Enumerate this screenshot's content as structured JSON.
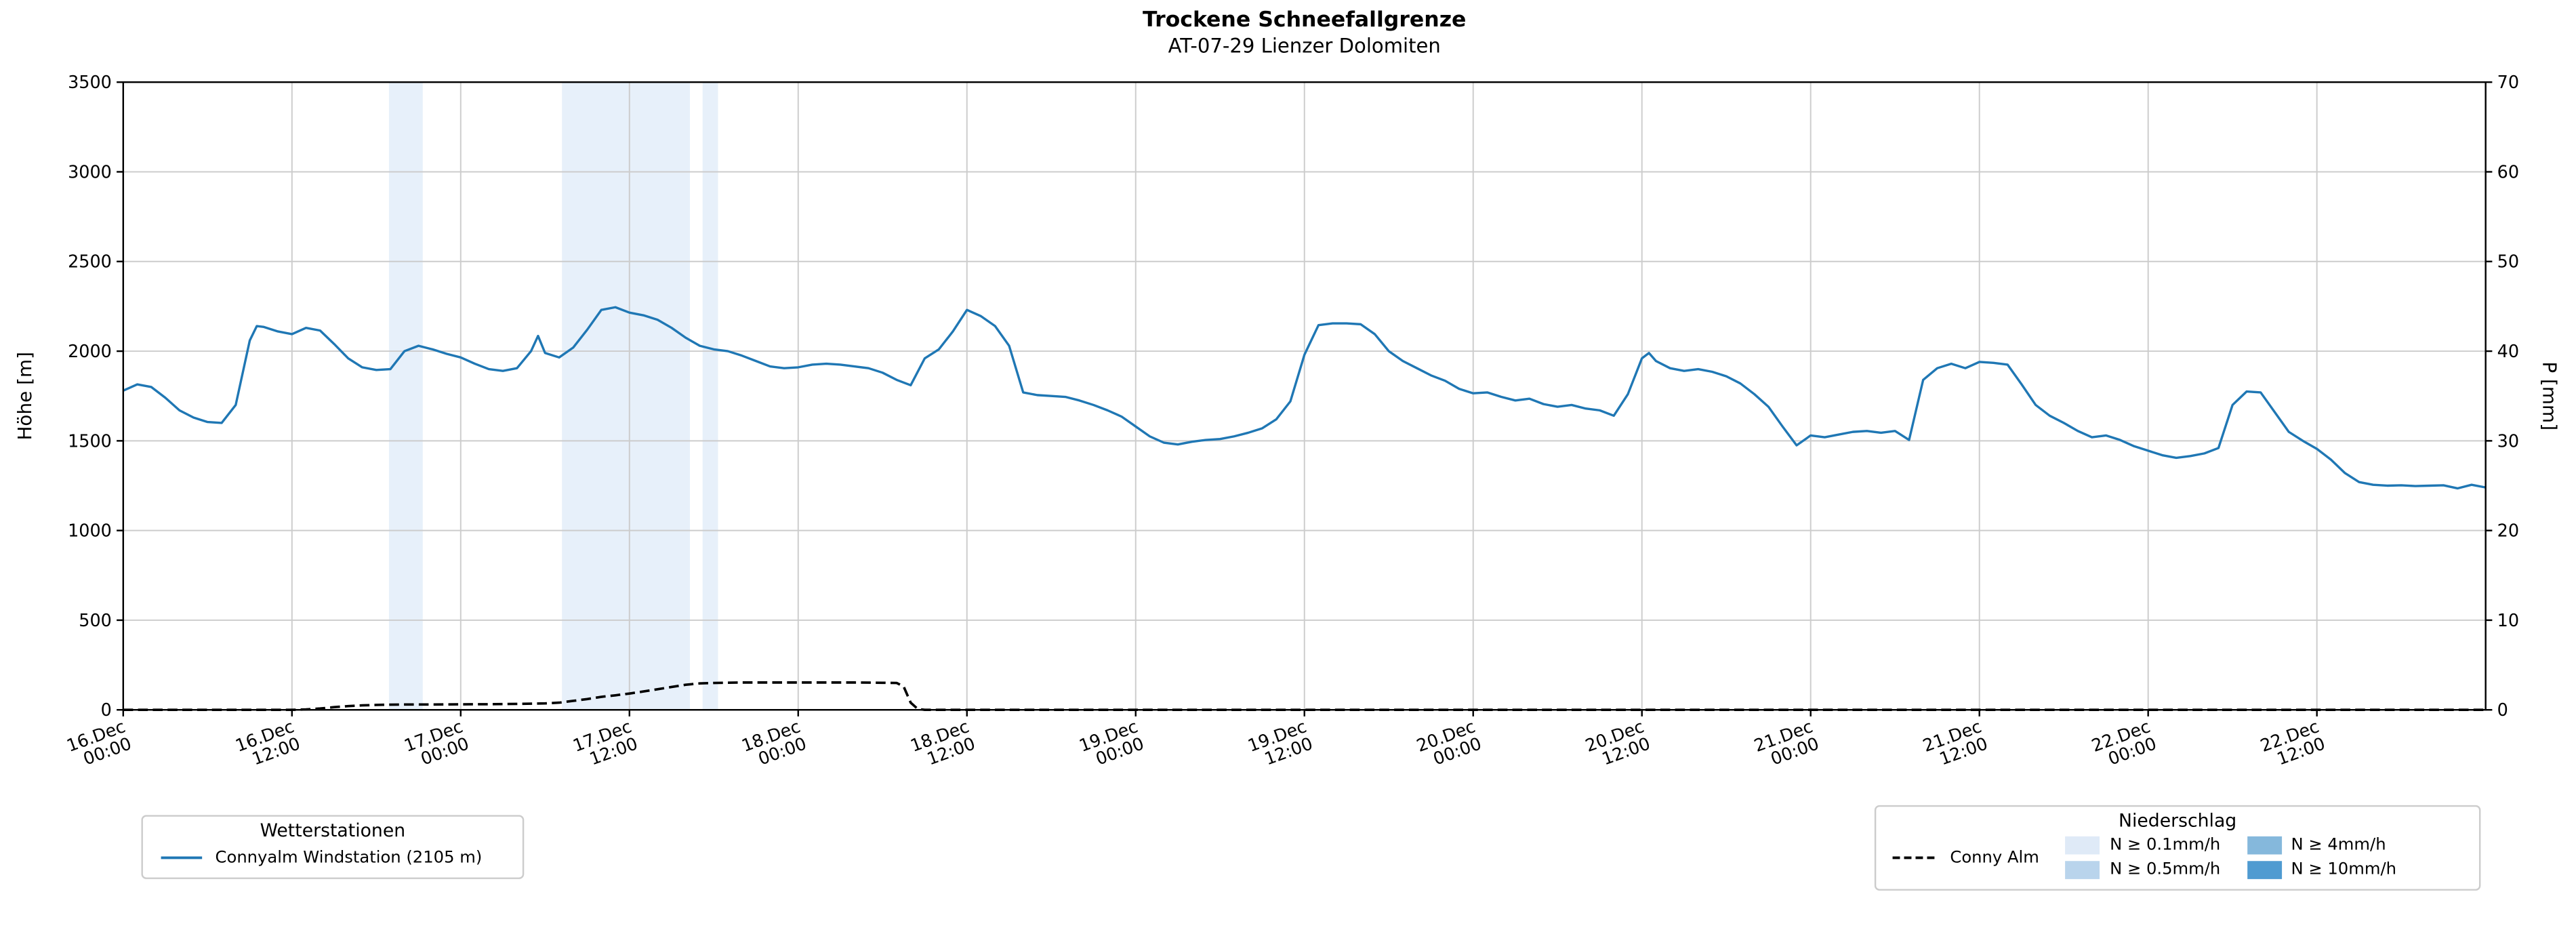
{
  "chart": {
    "title": "Trockene Schneefallgrenze",
    "subtitle": "AT-07-29 Lienzer Dolomiten",
    "ylabel_left": "Höhe [m]",
    "ylabel_right": "P [mm]"
  },
  "legend_left": {
    "title": "Wetterstationen",
    "items": [
      {
        "label": "Connyalm Windstation (2105 m)",
        "color": "#1f77b4",
        "style": "solid"
      }
    ]
  },
  "legend_right": {
    "title": "Niederschlag",
    "line_item": {
      "label": "Conny Alm",
      "color": "#000000",
      "style": "dashed"
    },
    "patch_items": [
      {
        "label": "N ≥ 0.1mm/h",
        "color": "#dfeaf7"
      },
      {
        "label": "N ≥ 0.5mm/h",
        "color": "#b9d4ec"
      },
      {
        "label": "N ≥ 4mm/h",
        "color": "#85b8dc"
      },
      {
        "label": "N ≥ 10mm/h",
        "color": "#4f9bd1"
      }
    ]
  },
  "chart_data": {
    "type": "line",
    "title": "Trockene Schneefallgrenze",
    "subtitle": "AT-07-29 Lienzer Dolomiten",
    "xlabel": "",
    "ylabel_left": "Höhe [m]",
    "ylabel_right": "P [mm]",
    "x_unit": "hours since 16.Dec 00:00",
    "x_range": [
      0,
      168
    ],
    "ylim_left": [
      0,
      3500
    ],
    "ylim_right": [
      0,
      70
    ],
    "grid": true,
    "yticks_left": [
      0,
      500,
      1000,
      1500,
      2000,
      2500,
      3000,
      3500
    ],
    "yticks_right": [
      0,
      10,
      20,
      30,
      40,
      50,
      60,
      70
    ],
    "x_ticks": [
      {
        "h": 0,
        "line1": "16.Dec",
        "line2": "00:00"
      },
      {
        "h": 12,
        "line1": "16.Dec",
        "line2": "12:00"
      },
      {
        "h": 24,
        "line1": "17.Dec",
        "line2": "00:00"
      },
      {
        "h": 36,
        "line1": "17.Dec",
        "line2": "12:00"
      },
      {
        "h": 48,
        "line1": "18.Dec",
        "line2": "00:00"
      },
      {
        "h": 60,
        "line1": "18.Dec",
        "line2": "12:00"
      },
      {
        "h": 72,
        "line1": "19.Dec",
        "line2": "00:00"
      },
      {
        "h": 84,
        "line1": "19.Dec",
        "line2": "12:00"
      },
      {
        "h": 96,
        "line1": "20.Dec",
        "line2": "00:00"
      },
      {
        "h": 108,
        "line1": "20.Dec",
        "line2": "12:00"
      },
      {
        "h": 120,
        "line1": "21.Dec",
        "line2": "00:00"
      },
      {
        "h": 132,
        "line1": "21.Dec",
        "line2": "12:00"
      },
      {
        "h": 144,
        "line1": "22.Dec",
        "line2": "00:00"
      },
      {
        "h": 156,
        "line1": "22.Dec",
        "line2": "12:00"
      }
    ],
    "precip_bands": [
      {
        "from_h": 18.9,
        "to_h": 21.3,
        "level": "N ≥ 0.1mm/h",
        "color": "#e7f0fa"
      },
      {
        "from_h": 31.2,
        "to_h": 40.3,
        "level": "N ≥ 0.1mm/h",
        "color": "#e7f0fa"
      },
      {
        "from_h": 41.2,
        "to_h": 42.3,
        "level": "N ≥ 0.1mm/h",
        "color": "#e7f0fa"
      }
    ],
    "series": [
      {
        "id": "connyalm-windstation",
        "name": "Connyalm Windstation (2105 m)",
        "axis": "left",
        "color": "#1f77b4",
        "style": "solid",
        "width": 1.4,
        "points": [
          [
            0,
            1780
          ],
          [
            1,
            1815
          ],
          [
            2,
            1800
          ],
          [
            3,
            1740
          ],
          [
            4,
            1670
          ],
          [
            5,
            1630
          ],
          [
            6,
            1605
          ],
          [
            7,
            1600
          ],
          [
            8,
            1700
          ],
          [
            9,
            2060
          ],
          [
            9.5,
            2140
          ],
          [
            10,
            2135
          ],
          [
            11,
            2110
          ],
          [
            12,
            2095
          ],
          [
            13,
            2130
          ],
          [
            14,
            2115
          ],
          [
            15,
            2040
          ],
          [
            16,
            1960
          ],
          [
            17,
            1910
          ],
          [
            18,
            1895
          ],
          [
            19,
            1900
          ],
          [
            20,
            2000
          ],
          [
            21,
            2030
          ],
          [
            22,
            2010
          ],
          [
            23,
            1985
          ],
          [
            24,
            1965
          ],
          [
            25,
            1930
          ],
          [
            26,
            1900
          ],
          [
            27,
            1890
          ],
          [
            28,
            1905
          ],
          [
            29,
            2000
          ],
          [
            29.5,
            2085
          ],
          [
            30,
            1990
          ],
          [
            31,
            1965
          ],
          [
            32,
            2020
          ],
          [
            33,
            2120
          ],
          [
            34,
            2230
          ],
          [
            35,
            2245
          ],
          [
            36,
            2215
          ],
          [
            37,
            2200
          ],
          [
            38,
            2175
          ],
          [
            39,
            2130
          ],
          [
            40,
            2075
          ],
          [
            41,
            2030
          ],
          [
            42,
            2010
          ],
          [
            43,
            2000
          ],
          [
            44,
            1975
          ],
          [
            45,
            1945
          ],
          [
            46,
            1915
          ],
          [
            47,
            1905
          ],
          [
            48,
            1910
          ],
          [
            49,
            1925
          ],
          [
            50,
            1930
          ],
          [
            51,
            1925
          ],
          [
            52,
            1915
          ],
          [
            53,
            1905
          ],
          [
            54,
            1880
          ],
          [
            55,
            1840
          ],
          [
            56,
            1810
          ],
          [
            57,
            1960
          ],
          [
            58,
            2010
          ],
          [
            59,
            2110
          ],
          [
            60,
            2230
          ],
          [
            61,
            2195
          ],
          [
            62,
            2140
          ],
          [
            63,
            2030
          ],
          [
            64,
            1770
          ],
          [
            65,
            1755
          ],
          [
            66,
            1750
          ],
          [
            67,
            1745
          ],
          [
            68,
            1725
          ],
          [
            69,
            1700
          ],
          [
            70,
            1670
          ],
          [
            71,
            1635
          ],
          [
            72,
            1580
          ],
          [
            73,
            1525
          ],
          [
            74,
            1490
          ],
          [
            75,
            1480
          ],
          [
            76,
            1495
          ],
          [
            77,
            1505
          ],
          [
            78,
            1510
          ],
          [
            79,
            1525
          ],
          [
            80,
            1545
          ],
          [
            81,
            1570
          ],
          [
            82,
            1620
          ],
          [
            83,
            1720
          ],
          [
            84,
            1980
          ],
          [
            85,
            2145
          ],
          [
            86,
            2155
          ],
          [
            87,
            2155
          ],
          [
            88,
            2150
          ],
          [
            89,
            2095
          ],
          [
            90,
            2000
          ],
          [
            91,
            1945
          ],
          [
            92,
            1905
          ],
          [
            93,
            1865
          ],
          [
            94,
            1835
          ],
          [
            95,
            1790
          ],
          [
            96,
            1765
          ],
          [
            97,
            1770
          ],
          [
            98,
            1745
          ],
          [
            99,
            1725
          ],
          [
            100,
            1735
          ],
          [
            101,
            1705
          ],
          [
            102,
            1690
          ],
          [
            103,
            1700
          ],
          [
            104,
            1680
          ],
          [
            105,
            1670
          ],
          [
            106,
            1640
          ],
          [
            107,
            1760
          ],
          [
            108,
            1960
          ],
          [
            108.5,
            1990
          ],
          [
            109,
            1945
          ],
          [
            110,
            1905
          ],
          [
            111,
            1890
          ],
          [
            112,
            1900
          ],
          [
            113,
            1885
          ],
          [
            114,
            1860
          ],
          [
            115,
            1820
          ],
          [
            116,
            1760
          ],
          [
            117,
            1690
          ],
          [
            118,
            1580
          ],
          [
            119,
            1475
          ],
          [
            120,
            1530
          ],
          [
            121,
            1520
          ],
          [
            122,
            1535
          ],
          [
            123,
            1550
          ],
          [
            124,
            1555
          ],
          [
            125,
            1545
          ],
          [
            126,
            1555
          ],
          [
            127,
            1505
          ],
          [
            128,
            1840
          ],
          [
            129,
            1905
          ],
          [
            130,
            1930
          ],
          [
            131,
            1905
          ],
          [
            132,
            1940
          ],
          [
            133,
            1935
          ],
          [
            134,
            1925
          ],
          [
            135,
            1815
          ],
          [
            136,
            1700
          ],
          [
            137,
            1640
          ],
          [
            138,
            1600
          ],
          [
            139,
            1555
          ],
          [
            140,
            1520
          ],
          [
            141,
            1530
          ],
          [
            142,
            1505
          ],
          [
            143,
            1470
          ],
          [
            144,
            1445
          ],
          [
            145,
            1420
          ],
          [
            146,
            1405
          ],
          [
            147,
            1415
          ],
          [
            148,
            1430
          ],
          [
            149,
            1460
          ],
          [
            150,
            1700
          ],
          [
            151,
            1775
          ],
          [
            152,
            1770
          ],
          [
            153,
            1660
          ],
          [
            154,
            1550
          ],
          [
            155,
            1500
          ],
          [
            156,
            1455
          ],
          [
            157,
            1395
          ],
          [
            158,
            1320
          ],
          [
            159,
            1270
          ],
          [
            160,
            1255
          ],
          [
            161,
            1250
          ],
          [
            162,
            1252
          ],
          [
            163,
            1248
          ],
          [
            164,
            1250
          ],
          [
            165,
            1252
          ],
          [
            166,
            1235
          ],
          [
            167,
            1255
          ],
          [
            168,
            1240
          ]
        ]
      },
      {
        "id": "conny-alm-precip",
        "name": "Conny Alm",
        "axis": "right",
        "color": "#000000",
        "style": "dashed",
        "width": 1.5,
        "points": [
          [
            0,
            0
          ],
          [
            6,
            0
          ],
          [
            12,
            0
          ],
          [
            13,
            0.05
          ],
          [
            14,
            0.15
          ],
          [
            15,
            0.3
          ],
          [
            16,
            0.42
          ],
          [
            17,
            0.5
          ],
          [
            18,
            0.55
          ],
          [
            19,
            0.58
          ],
          [
            20,
            0.6
          ],
          [
            22,
            0.6
          ],
          [
            24,
            0.62
          ],
          [
            26,
            0.63
          ],
          [
            28,
            0.66
          ],
          [
            30,
            0.72
          ],
          [
            31,
            0.8
          ],
          [
            32,
            1.0
          ],
          [
            33,
            1.2
          ],
          [
            34,
            1.45
          ],
          [
            35,
            1.62
          ],
          [
            36,
            1.82
          ],
          [
            37,
            2.05
          ],
          [
            38,
            2.3
          ],
          [
            39,
            2.55
          ],
          [
            40,
            2.8
          ],
          [
            41,
            2.95
          ],
          [
            42,
            3.0
          ],
          [
            44,
            3.05
          ],
          [
            46,
            3.05
          ],
          [
            48,
            3.05
          ],
          [
            50,
            3.05
          ],
          [
            52,
            3.05
          ],
          [
            54,
            3.02
          ],
          [
            55,
            3.0
          ],
          [
            55.5,
            2.6
          ],
          [
            56,
            0.8
          ],
          [
            56.5,
            0.1
          ],
          [
            57,
            0
          ],
          [
            60,
            0
          ],
          [
            72,
            0
          ],
          [
            84,
            0
          ],
          [
            96,
            0
          ],
          [
            108,
            0
          ],
          [
            120,
            0
          ],
          [
            132,
            0
          ],
          [
            144,
            0
          ],
          [
            156,
            0
          ],
          [
            168,
            0
          ]
        ]
      }
    ]
  },
  "style": {
    "grid_color": "#cccccc",
    "axis_color": "#000000"
  }
}
